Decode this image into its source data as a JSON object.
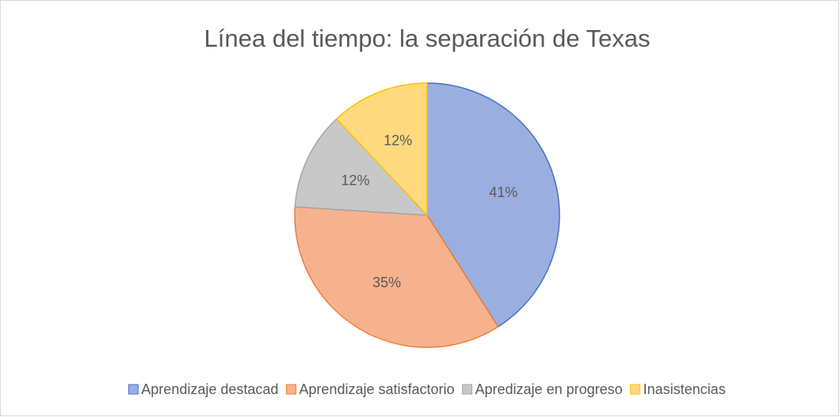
{
  "chart_data": {
    "type": "pie",
    "title": "Línea del tiempo: la separación de Texas",
    "categories": [
      "Aprendizaje destacad",
      "Aprendizaje satisfactorio",
      "Apredizaje en progreso",
      "Inasistencias"
    ],
    "values": [
      41,
      35,
      12,
      12
    ],
    "value_labels": [
      "41%",
      "35%",
      "12%",
      "12%"
    ],
    "colors": [
      "#9aaee0",
      "#f6b28f",
      "#c8c8c8",
      "#ffd97e"
    ],
    "edge_colors": [
      "#4472c4",
      "#ed7d31",
      "#a5a5a5",
      "#ffc000"
    ],
    "legend": "bottom"
  }
}
